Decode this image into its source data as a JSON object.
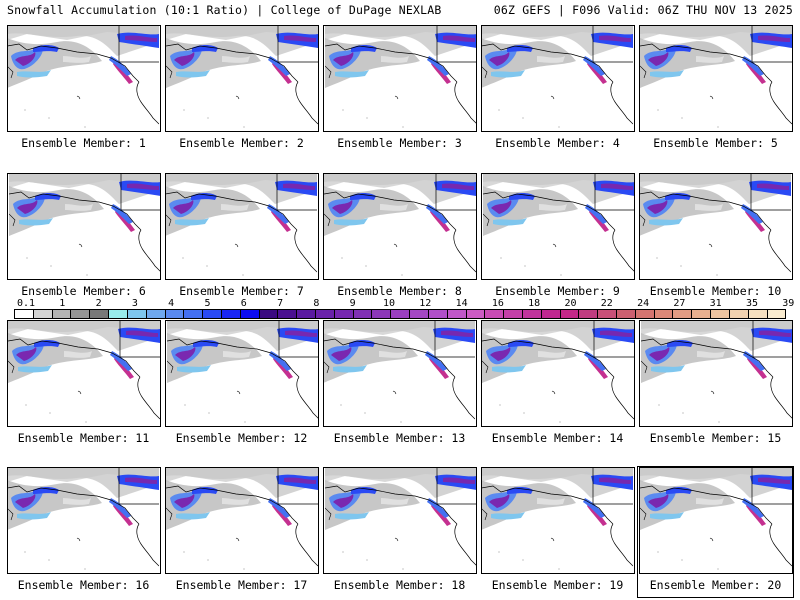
{
  "header": {
    "title_left": "Snowfall Accumulation (10:1 Ratio) | College of DuPage NEXLAB",
    "title_right": "06Z GEFS | F096 Valid: 06Z THU NOV 13 2025"
  },
  "colorbar": {
    "labels": [
      "0.1",
      "1",
      "2",
      "3",
      "4",
      "5",
      "6",
      "7",
      "8",
      "9",
      "10",
      "12",
      "14",
      "16",
      "18",
      "20",
      "22",
      "24",
      "27",
      "31",
      "35",
      "39"
    ],
    "colors": [
      "#ffffff",
      "#d4d4d4",
      "#b4b4b4",
      "#969696",
      "#787878",
      "#99ecec",
      "#7fc6ee",
      "#6fa8ee",
      "#5a8af0",
      "#4470f2",
      "#2a4af4",
      "#1a26f4",
      "#0c0cf0",
      "#3a0a80",
      "#4a1090",
      "#5a1aa0",
      "#6a22aa",
      "#7628b0",
      "#8030b4",
      "#8c38b8",
      "#9a40c0",
      "#a448c4",
      "#b050c8",
      "#c058c8",
      "#cc5cc4",
      "#c84cb4",
      "#c440a8",
      "#c0349c",
      "#c02890",
      "#c42888",
      "#c03c80",
      "#c85078",
      "#cc6070",
      "#d47470",
      "#dc8878",
      "#e29c84",
      "#e8b090",
      "#eec4a0",
      "#f2d2b0",
      "#f6e0c0",
      "#faecd0"
    ]
  },
  "members": [
    {
      "label": "Ensemble Member: 1"
    },
    {
      "label": "Ensemble Member: 2"
    },
    {
      "label": "Ensemble Member: 3"
    },
    {
      "label": "Ensemble Member: 4"
    },
    {
      "label": "Ensemble Member: 5"
    },
    {
      "label": "Ensemble Member: 6"
    },
    {
      "label": "Ensemble Member: 7"
    },
    {
      "label": "Ensemble Member: 8"
    },
    {
      "label": "Ensemble Member: 9"
    },
    {
      "label": "Ensemble Member: 10"
    },
    {
      "label": "Ensemble Member: 11"
    },
    {
      "label": "Ensemble Member: 12"
    },
    {
      "label": "Ensemble Member: 13"
    },
    {
      "label": "Ensemble Member: 14"
    },
    {
      "label": "Ensemble Member: 15"
    },
    {
      "label": "Ensemble Member: 16"
    },
    {
      "label": "Ensemble Member: 17"
    },
    {
      "label": "Ensemble Member: 18"
    },
    {
      "label": "Ensemble Member: 19"
    },
    {
      "label": "Ensemble Member: 20",
      "selected": true
    }
  ]
}
